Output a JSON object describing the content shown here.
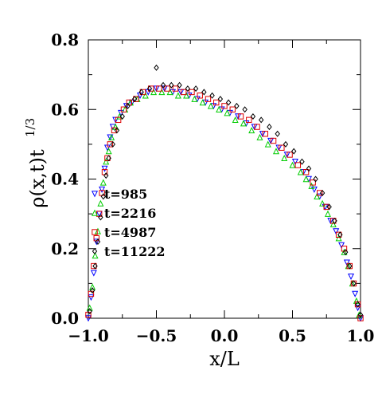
{
  "chart_data": {
    "type": "scatter",
    "title": "",
    "xlabel": "x/L",
    "ylabel": "ρ(x,t)t",
    "ylabel_superscript": "1/3",
    "xlim": [
      -1.0,
      1.0
    ],
    "ylim": [
      0.0,
      0.8
    ],
    "x_ticks": [
      "−1.0",
      "−0.5",
      "0.0",
      "0.5",
      "1.0"
    ],
    "y_ticks": [
      "0.0",
      "0.2",
      "0.4",
      "0.6",
      "0.8"
    ],
    "grid": false,
    "legend_position": "center-left",
    "series": [
      {
        "name": "t=985",
        "marker": "triangle-down",
        "color": "#0000ff",
        "points": [
          [
            -1.0,
            0.0
          ],
          [
            -0.98,
            0.06
          ],
          [
            -0.96,
            0.13
          ],
          [
            -0.94,
            0.22
          ],
          [
            -0.92,
            0.3
          ],
          [
            -0.9,
            0.37
          ],
          [
            -0.88,
            0.43
          ],
          [
            -0.86,
            0.49
          ],
          [
            -0.84,
            0.52
          ],
          [
            -0.82,
            0.55
          ],
          [
            -0.8,
            0.57
          ],
          [
            -0.76,
            0.59
          ],
          [
            -0.72,
            0.61
          ],
          [
            -0.68,
            0.62
          ],
          [
            -0.62,
            0.64
          ],
          [
            -0.56,
            0.65
          ],
          [
            -0.5,
            0.66
          ],
          [
            -0.44,
            0.66
          ],
          [
            -0.38,
            0.65
          ],
          [
            -0.32,
            0.65
          ],
          [
            -0.26,
            0.64
          ],
          [
            -0.2,
            0.63
          ],
          [
            -0.14,
            0.62
          ],
          [
            -0.08,
            0.61
          ],
          [
            -0.02,
            0.6
          ],
          [
            0.04,
            0.59
          ],
          [
            0.1,
            0.58
          ],
          [
            0.16,
            0.56
          ],
          [
            0.22,
            0.55
          ],
          [
            0.28,
            0.53
          ],
          [
            0.34,
            0.51
          ],
          [
            0.4,
            0.49
          ],
          [
            0.46,
            0.47
          ],
          [
            0.52,
            0.45
          ],
          [
            0.58,
            0.42
          ],
          [
            0.62,
            0.4
          ],
          [
            0.66,
            0.37
          ],
          [
            0.7,
            0.35
          ],
          [
            0.74,
            0.32
          ],
          [
            0.78,
            0.28
          ],
          [
            0.82,
            0.25
          ],
          [
            0.86,
            0.21
          ],
          [
            0.9,
            0.16
          ],
          [
            0.93,
            0.12
          ],
          [
            0.96,
            0.07
          ],
          [
            0.98,
            0.03
          ],
          [
            1.0,
            0.0
          ]
        ]
      },
      {
        "name": "t=2216",
        "marker": "triangle-up",
        "color": "#00cc00",
        "points": [
          [
            -0.99,
            0.03
          ],
          [
            -0.97,
            0.09
          ],
          [
            -0.95,
            0.18
          ],
          [
            -0.93,
            0.25
          ],
          [
            -0.91,
            0.33
          ],
          [
            -0.89,
            0.39
          ],
          [
            -0.87,
            0.45
          ],
          [
            -0.85,
            0.48
          ],
          [
            -0.83,
            0.52
          ],
          [
            -0.8,
            0.55
          ],
          [
            -0.77,
            0.58
          ],
          [
            -0.73,
            0.6
          ],
          [
            -0.69,
            0.62
          ],
          [
            -0.64,
            0.63
          ],
          [
            -0.58,
            0.64
          ],
          [
            -0.52,
            0.65
          ],
          [
            -0.46,
            0.65
          ],
          [
            -0.4,
            0.65
          ],
          [
            -0.34,
            0.64
          ],
          [
            -0.28,
            0.64
          ],
          [
            -0.22,
            0.63
          ],
          [
            -0.16,
            0.62
          ],
          [
            -0.1,
            0.61
          ],
          [
            -0.04,
            0.6
          ],
          [
            0.02,
            0.59
          ],
          [
            0.08,
            0.57
          ],
          [
            0.14,
            0.56
          ],
          [
            0.2,
            0.54
          ],
          [
            0.26,
            0.52
          ],
          [
            0.32,
            0.5
          ],
          [
            0.38,
            0.48
          ],
          [
            0.44,
            0.46
          ],
          [
            0.5,
            0.44
          ],
          [
            0.56,
            0.42
          ],
          [
            0.6,
            0.4
          ],
          [
            0.64,
            0.38
          ],
          [
            0.68,
            0.35
          ],
          [
            0.72,
            0.33
          ],
          [
            0.76,
            0.3
          ],
          [
            0.8,
            0.27
          ],
          [
            0.84,
            0.23
          ],
          [
            0.88,
            0.19
          ],
          [
            0.91,
            0.15
          ],
          [
            0.94,
            0.1
          ],
          [
            0.97,
            0.05
          ],
          [
            0.99,
            0.01
          ]
        ]
      },
      {
        "name": "t=4987",
        "marker": "square",
        "color": "#dd0000",
        "points": [
          [
            -1.0,
            0.01
          ],
          [
            -0.98,
            0.07
          ],
          [
            -0.96,
            0.15
          ],
          [
            -0.94,
            0.23
          ],
          [
            -0.92,
            0.3
          ],
          [
            -0.9,
            0.36
          ],
          [
            -0.88,
            0.42
          ],
          [
            -0.86,
            0.46
          ],
          [
            -0.84,
            0.5
          ],
          [
            -0.81,
            0.54
          ],
          [
            -0.78,
            0.57
          ],
          [
            -0.74,
            0.6
          ],
          [
            -0.7,
            0.62
          ],
          [
            -0.65,
            0.63
          ],
          [
            -0.6,
            0.65
          ],
          [
            -0.54,
            0.66
          ],
          [
            -0.48,
            0.66
          ],
          [
            -0.42,
            0.66
          ],
          [
            -0.36,
            0.66
          ],
          [
            -0.3,
            0.65
          ],
          [
            -0.24,
            0.65
          ],
          [
            -0.18,
            0.64
          ],
          [
            -0.12,
            0.63
          ],
          [
            -0.06,
            0.62
          ],
          [
            0.0,
            0.61
          ],
          [
            0.06,
            0.6
          ],
          [
            0.12,
            0.58
          ],
          [
            0.18,
            0.57
          ],
          [
            0.24,
            0.55
          ],
          [
            0.3,
            0.53
          ],
          [
            0.36,
            0.51
          ],
          [
            0.42,
            0.49
          ],
          [
            0.48,
            0.47
          ],
          [
            0.54,
            0.44
          ],
          [
            0.6,
            0.42
          ],
          [
            0.65,
            0.39
          ],
          [
            0.7,
            0.36
          ],
          [
            0.75,
            0.32
          ],
          [
            0.8,
            0.28
          ],
          [
            0.84,
            0.24
          ],
          [
            0.88,
            0.2
          ],
          [
            0.92,
            0.15
          ],
          [
            0.95,
            0.1
          ],
          [
            0.98,
            0.04
          ],
          [
            1.0,
            0.0
          ]
        ]
      },
      {
        "name": "t=11222",
        "marker": "diamond",
        "color": "#000000",
        "points": [
          [
            -0.99,
            0.02
          ],
          [
            -0.97,
            0.08
          ],
          [
            -0.95,
            0.15
          ],
          [
            -0.93,
            0.22
          ],
          [
            -0.91,
            0.29
          ],
          [
            -0.89,
            0.35
          ],
          [
            -0.87,
            0.41
          ],
          [
            -0.85,
            0.46
          ],
          [
            -0.82,
            0.5
          ],
          [
            -0.79,
            0.54
          ],
          [
            -0.75,
            0.58
          ],
          [
            -0.71,
            0.61
          ],
          [
            -0.66,
            0.63
          ],
          [
            -0.61,
            0.65
          ],
          [
            -0.55,
            0.66
          ],
          [
            -0.5,
            0.72
          ],
          [
            -0.45,
            0.67
          ],
          [
            -0.39,
            0.67
          ],
          [
            -0.33,
            0.67
          ],
          [
            -0.27,
            0.66
          ],
          [
            -0.21,
            0.66
          ],
          [
            -0.15,
            0.65
          ],
          [
            -0.09,
            0.64
          ],
          [
            -0.03,
            0.63
          ],
          [
            0.03,
            0.62
          ],
          [
            0.09,
            0.61
          ],
          [
            0.15,
            0.6
          ],
          [
            0.21,
            0.58
          ],
          [
            0.27,
            0.57
          ],
          [
            0.33,
            0.55
          ],
          [
            0.39,
            0.53
          ],
          [
            0.45,
            0.5
          ],
          [
            0.51,
            0.48
          ],
          [
            0.57,
            0.45
          ],
          [
            0.62,
            0.43
          ],
          [
            0.67,
            0.4
          ],
          [
            0.72,
            0.36
          ],
          [
            0.77,
            0.32
          ],
          [
            0.81,
            0.28
          ],
          [
            0.85,
            0.24
          ],
          [
            0.89,
            0.19
          ],
          [
            0.92,
            0.15
          ],
          [
            0.95,
            0.1
          ],
          [
            0.98,
            0.04
          ],
          [
            1.0,
            0.01
          ]
        ]
      }
    ]
  }
}
